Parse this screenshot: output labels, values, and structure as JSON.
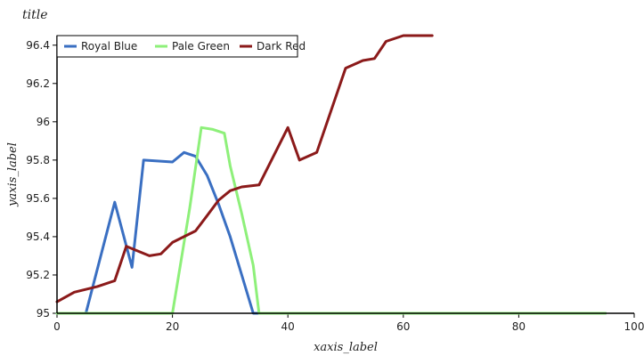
{
  "chart_data": {
    "type": "line",
    "title": "title",
    "xlabel": "xaxis_label",
    "ylabel": "yaxis_label",
    "xlim": [
      0,
      100
    ],
    "ylim": [
      95,
      96.45
    ],
    "x_ticks": [
      0,
      20,
      40,
      60,
      80,
      100
    ],
    "y_ticks": [
      95,
      95.2,
      95.4,
      95.6,
      95.8,
      96,
      96.2,
      96.4
    ],
    "x_tick_labels": [
      "0",
      "20",
      "40",
      "60",
      "80",
      "100"
    ],
    "y_tick_labels": [
      "95",
      "95.2",
      "95.4",
      "95.6",
      "95.8",
      "96",
      "96.2",
      "96.4"
    ],
    "grid": false,
    "legend_placement": "top-left",
    "series": [
      {
        "name": "Royal Blue",
        "color": "#3a6fc2",
        "points": [
          [
            0,
            95
          ],
          [
            5,
            95
          ],
          [
            10,
            95.58
          ],
          [
            13,
            95.24
          ],
          [
            15,
            95.8
          ],
          [
            20,
            95.79
          ],
          [
            22,
            95.84
          ],
          [
            24,
            95.82
          ],
          [
            26,
            95.72
          ],
          [
            28,
            95.57
          ],
          [
            30,
            95.4
          ],
          [
            32,
            95.2
          ],
          [
            34,
            95
          ],
          [
            36,
            95
          ],
          [
            40,
            95
          ],
          [
            50,
            95
          ],
          [
            60,
            95
          ],
          [
            70,
            95
          ],
          [
            80,
            95
          ],
          [
            90,
            95
          ],
          [
            95,
            95
          ]
        ]
      },
      {
        "name": "Pale Green",
        "color": "#8ef07a",
        "points": [
          [
            0,
            95
          ],
          [
            10,
            95
          ],
          [
            20,
            95
          ],
          [
            23,
            95.55
          ],
          [
            25,
            95.97
          ],
          [
            27,
            95.96
          ],
          [
            29,
            95.94
          ],
          [
            30,
            95.77
          ],
          [
            32,
            95.52
          ],
          [
            34,
            95.25
          ],
          [
            35,
            95
          ],
          [
            40,
            95
          ],
          [
            50,
            95
          ],
          [
            60,
            95
          ],
          [
            70,
            95
          ],
          [
            80,
            95
          ],
          [
            90,
            95
          ],
          [
            95,
            95
          ]
        ]
      },
      {
        "name": "Dark Red",
        "color": "#8b1a1a",
        "points": [
          [
            0,
            95.06
          ],
          [
            3,
            95.11
          ],
          [
            7,
            95.14
          ],
          [
            10,
            95.17
          ],
          [
            12,
            95.35
          ],
          [
            16,
            95.3
          ],
          [
            18,
            95.31
          ],
          [
            20,
            95.37
          ],
          [
            22,
            95.4
          ],
          [
            24,
            95.43
          ],
          [
            26,
            95.51
          ],
          [
            28,
            95.59
          ],
          [
            30,
            95.64
          ],
          [
            32,
            95.66
          ],
          [
            35,
            95.67
          ],
          [
            40,
            95.97
          ],
          [
            42,
            95.8
          ],
          [
            45,
            95.84
          ],
          [
            50,
            96.28
          ],
          [
            53,
            96.32
          ],
          [
            55,
            96.33
          ],
          [
            57,
            96.42
          ],
          [
            60,
            96.45
          ],
          [
            62,
            96.45
          ],
          [
            65,
            96.45
          ]
        ]
      }
    ]
  }
}
